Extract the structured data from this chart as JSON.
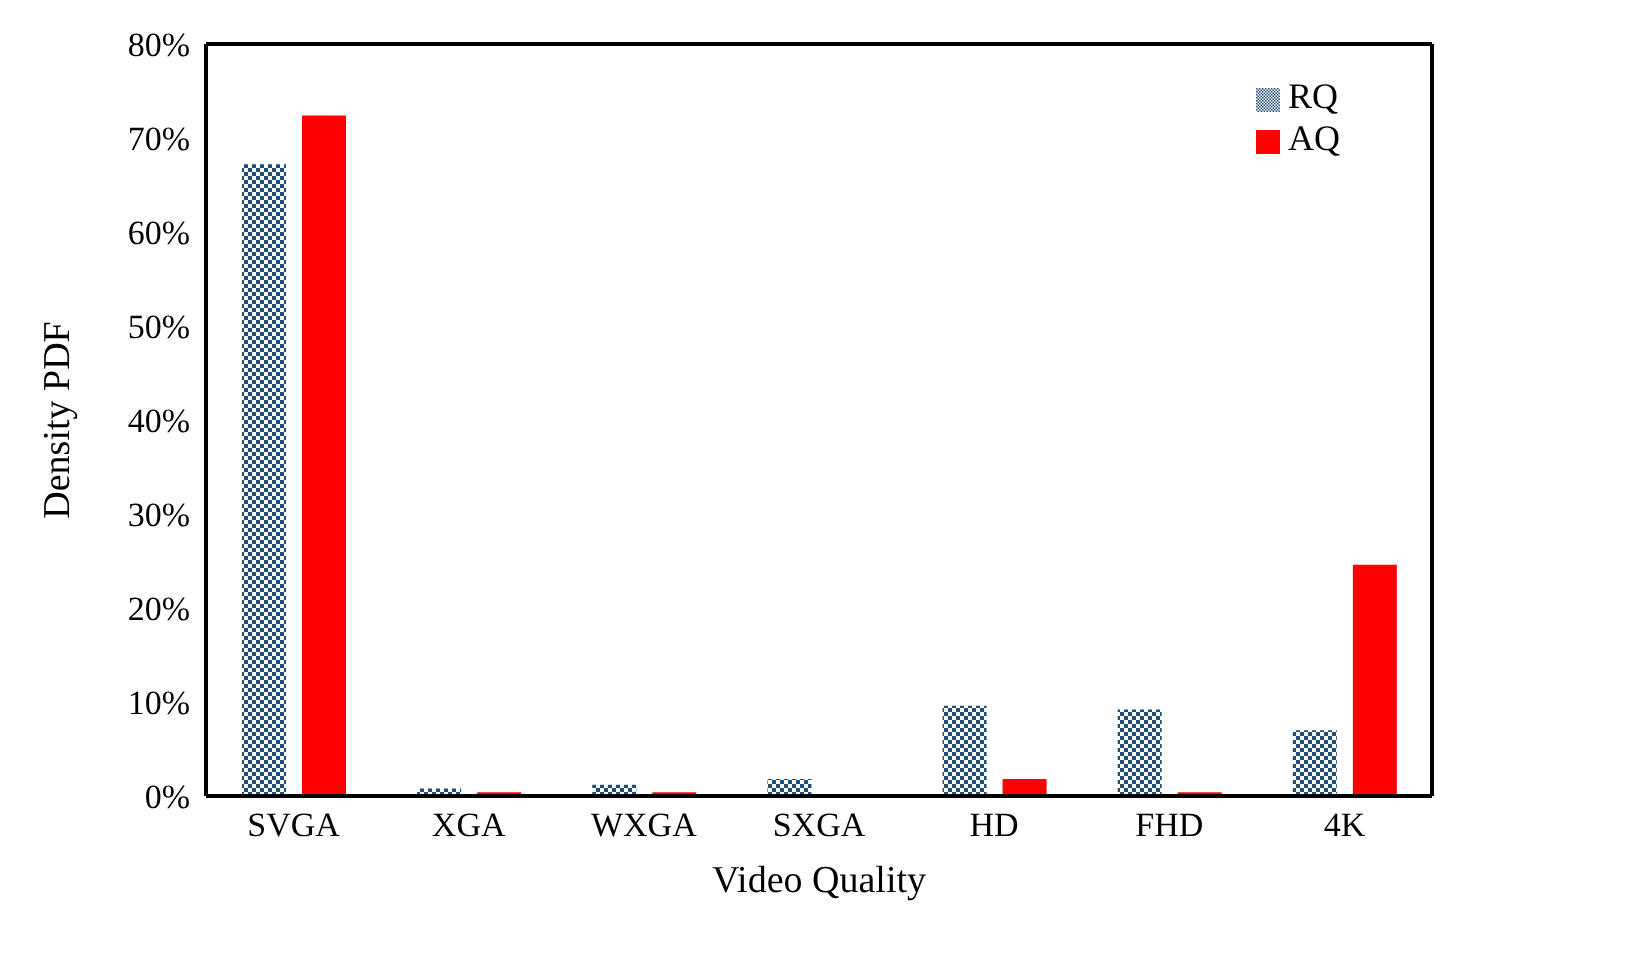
{
  "chart_data": {
    "type": "bar",
    "xlabel": "Video Quality",
    "ylabel": "Density PDF",
    "categories": [
      "SVGA",
      "XGA",
      "WXGA",
      "SXGA",
      "HD",
      "FHD",
      "4K"
    ],
    "series": [
      {
        "name": "RQ",
        "color": "#1f4e79",
        "values": [
          67.2,
          0.8,
          1.2,
          1.8,
          9.6,
          9.2,
          7.0
        ]
      },
      {
        "name": "AQ",
        "color": "#ff0000",
        "values": [
          72.4,
          0.4,
          0.4,
          0,
          1.8,
          0.4,
          24.6
        ]
      }
    ],
    "ylim": [
      0,
      80
    ],
    "yticks": [
      {
        "value": 0,
        "label": "0%"
      },
      {
        "value": 10,
        "label": "10%"
      },
      {
        "value": 20,
        "label": "20%"
      },
      {
        "value": 30,
        "label": "30%"
      },
      {
        "value": 40,
        "label": "40%"
      },
      {
        "value": 50,
        "label": "50%"
      },
      {
        "value": 60,
        "label": "60%"
      },
      {
        "value": 70,
        "label": "70%"
      },
      {
        "value": 80,
        "label": "80%"
      }
    ],
    "grid": false,
    "legend": "top right"
  }
}
